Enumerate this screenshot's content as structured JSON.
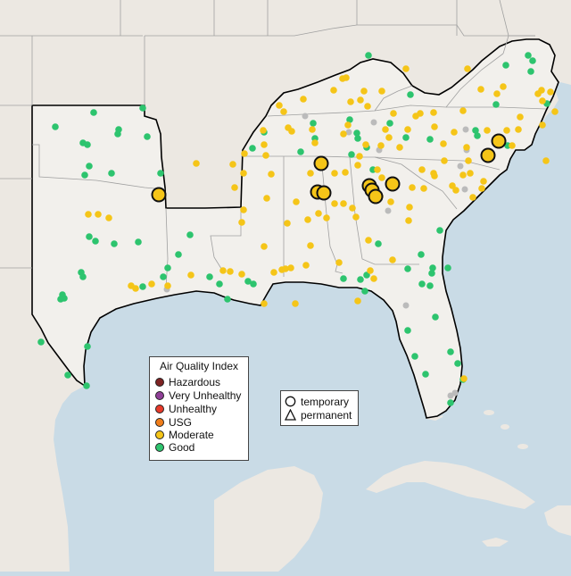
{
  "colors": {
    "ocean": "#c9dbe6",
    "land_other": "#ece8e2",
    "land_region": "#f2f0ec",
    "state_border": "#9c9c9c",
    "region_border": "#000000",
    "gray_station": "#bbbbbb"
  },
  "legend": {
    "title": "Air Quality Index",
    "items": [
      {
        "label": "Hazardous",
        "color": "#7e2323"
      },
      {
        "label": "Very Unhealthy",
        "color": "#8f3f97"
      },
      {
        "label": "Unhealthy",
        "color": "#e83a2a"
      },
      {
        "label": "USG",
        "color": "#f07d1a"
      },
      {
        "label": "Moderate",
        "color": "#f5c518"
      },
      {
        "label": "Good",
        "color": "#2dc46e"
      }
    ]
  },
  "shape_legend": {
    "items": [
      {
        "label": "temporary",
        "shape": "circle-outline-icon"
      },
      {
        "label": "permanent",
        "shape": "triangle-outline-icon"
      }
    ]
  },
  "map_data": {
    "large_moderate_sites": [
      [
        178,
        218
      ],
      [
        360,
        183
      ],
      [
        356,
        215
      ],
      [
        363,
        216
      ],
      [
        414,
        208
      ],
      [
        417,
        213
      ],
      [
        421,
        220
      ],
      [
        440,
        206
      ],
      [
        547,
        174
      ],
      [
        559,
        158
      ]
    ],
    "good_sites": [
      [
        62,
        142
      ],
      [
        105,
        126
      ],
      [
        133,
        145
      ],
      [
        160,
        121
      ],
      [
        93,
        160
      ],
      [
        98,
        162
      ],
      [
        132,
        150
      ],
      [
        165,
        153
      ],
      [
        100,
        186
      ],
      [
        125,
        194
      ],
      [
        180,
        194
      ],
      [
        95,
        196
      ],
      [
        100,
        265
      ],
      [
        107,
        270
      ],
      [
        128,
        273
      ],
      [
        91,
        305
      ],
      [
        93,
        310
      ],
      [
        70,
        330
      ],
      [
        72,
        334
      ],
      [
        68,
        335
      ],
      [
        46,
        383
      ],
      [
        98,
        388
      ],
      [
        76,
        420
      ],
      [
        97,
        432
      ],
      [
        155,
        271
      ],
      [
        160,
        321
      ],
      [
        183,
        310
      ],
      [
        235,
        310
      ],
      [
        278,
        315
      ],
      [
        284,
        318
      ],
      [
        385,
        312
      ],
      [
        404,
        313
      ],
      [
        409,
        326
      ],
      [
        411,
        308
      ],
      [
        457,
        301
      ],
      [
        473,
        318
      ],
      [
        485,
        300
      ],
      [
        484,
        306
      ],
      [
        482,
        320
      ],
      [
        493,
        258
      ],
      [
        502,
        300
      ],
      [
        472,
        285
      ],
      [
        488,
        355
      ],
      [
        457,
        370
      ],
      [
        465,
        399
      ],
      [
        477,
        419
      ],
      [
        505,
        394
      ],
      [
        513,
        407
      ],
      [
        519,
        425
      ],
      [
        505,
        451
      ],
      [
        413,
        62
      ],
      [
        401,
        155
      ],
      [
        411,
        165
      ],
      [
        437,
        138
      ],
      [
        455,
        154
      ],
      [
        460,
        106
      ],
      [
        533,
        146
      ],
      [
        535,
        152
      ],
      [
        556,
        117
      ],
      [
        569,
        163
      ],
      [
        567,
        73
      ],
      [
        592,
        62
      ],
      [
        597,
        68
      ],
      [
        595,
        80
      ],
      [
        613,
        116
      ],
      [
        424,
        273
      ],
      [
        418,
        190
      ],
      [
        482,
        156
      ],
      [
        392,
        134
      ],
      [
        400,
        149
      ],
      [
        351,
        138
      ],
      [
        353,
        155
      ],
      [
        394,
        173
      ],
      [
        337,
        170
      ],
      [
        296,
        148
      ],
      [
        283,
        166
      ],
      [
        213,
        263
      ],
      [
        200,
        285
      ],
      [
        188,
        300
      ],
      [
        246,
        318
      ],
      [
        255,
        335
      ]
    ],
    "moderate_sites": [
      [
        220,
        183
      ],
      [
        263,
        210
      ],
      [
        261,
        184
      ],
      [
        274,
        172
      ],
      [
        295,
        146
      ],
      [
        296,
        162
      ],
      [
        273,
        194
      ],
      [
        298,
        174
      ],
      [
        304,
        195
      ],
      [
        327,
        147
      ],
      [
        350,
        145
      ],
      [
        353,
        160
      ],
      [
        348,
        194
      ],
      [
        332,
        226
      ],
      [
        345,
        246
      ],
      [
        343,
        297
      ],
      [
        322,
        250
      ],
      [
        271,
        249
      ],
      [
        296,
        276
      ],
      [
        273,
        235
      ],
      [
        307,
        305
      ],
      [
        316,
        302
      ],
      [
        271,
        307
      ],
      [
        258,
        304
      ],
      [
        250,
        303
      ],
      [
        214,
        308
      ],
      [
        188,
        320
      ],
      [
        170,
        318
      ],
      [
        147,
        320
      ],
      [
        152,
        323
      ],
      [
        99,
        240
      ],
      [
        122,
        244
      ],
      [
        110,
        240
      ],
      [
        296,
        340
      ],
      [
        331,
        340
      ],
      [
        401,
        337
      ],
      [
        380,
        294
      ],
      [
        385,
        228
      ],
      [
        375,
        228
      ],
      [
        399,
        243
      ],
      [
        413,
        269
      ],
      [
        440,
        291
      ],
      [
        415,
        303
      ],
      [
        419,
        312
      ],
      [
        459,
        232
      ],
      [
        475,
        211
      ],
      [
        473,
        190
      ],
      [
        486,
        194
      ],
      [
        487,
        197
      ],
      [
        498,
        180
      ],
      [
        519,
        196
      ],
      [
        523,
        165
      ],
      [
        525,
        180
      ],
      [
        527,
        194
      ],
      [
        507,
        208
      ],
      [
        511,
        213
      ],
      [
        530,
        221
      ],
      [
        540,
        211
      ],
      [
        542,
        203
      ],
      [
        497,
        161
      ],
      [
        509,
        148
      ],
      [
        546,
        146
      ],
      [
        568,
        146
      ],
      [
        574,
        163
      ],
      [
        581,
        145
      ],
      [
        583,
        131
      ],
      [
        608,
        140
      ],
      [
        612,
        180
      ],
      [
        622,
        125
      ],
      [
        603,
        105
      ],
      [
        607,
        101
      ],
      [
        617,
        103
      ],
      [
        608,
        113
      ],
      [
        524,
        77
      ],
      [
        539,
        100
      ],
      [
        564,
        97
      ],
      [
        557,
        105
      ],
      [
        519,
        124
      ],
      [
        486,
        126
      ],
      [
        471,
        127
      ],
      [
        441,
        127
      ],
      [
        457,
        145
      ],
      [
        448,
        165
      ],
      [
        427,
        163
      ],
      [
        410,
        162
      ],
      [
        403,
        175
      ],
      [
        423,
        190
      ],
      [
        428,
        199
      ],
      [
        426,
        220
      ],
      [
        438,
        226
      ],
      [
        375,
        194
      ],
      [
        387,
        193
      ],
      [
        385,
        150
      ],
      [
        390,
        140
      ],
      [
        393,
        114
      ],
      [
        374,
        101
      ],
      [
        408,
        102
      ],
      [
        384,
        88
      ],
      [
        388,
        87
      ],
      [
        455,
        77
      ],
      [
        466,
        130
      ],
      [
        487,
        142
      ],
      [
        436,
        154
      ],
      [
        401,
        185
      ],
      [
        299,
        222
      ],
      [
        357,
        239
      ],
      [
        366,
        244
      ],
      [
        348,
        275
      ],
      [
        404,
        112
      ],
      [
        412,
        119
      ],
      [
        428,
        102
      ],
      [
        432,
        145
      ],
      [
        313,
        118
      ],
      [
        340,
        111
      ],
      [
        323,
        143
      ],
      [
        318,
        125
      ],
      [
        326,
        300
      ],
      [
        320,
        301
      ],
      [
        462,
        210
      ],
      [
        395,
        233
      ],
      [
        458,
        247
      ],
      [
        520,
        424
      ]
    ],
    "gray_sites": [
      [
        342,
        130
      ],
      [
        419,
        137
      ],
      [
        522,
        145
      ],
      [
        523,
        168
      ],
      [
        516,
        186
      ],
      [
        521,
        212
      ],
      [
        435,
        236
      ],
      [
        455,
        342
      ],
      [
        510,
        440
      ],
      [
        505,
        443
      ],
      [
        187,
        324
      ],
      [
        425,
        168
      ],
      [
        391,
        148
      ]
    ]
  }
}
